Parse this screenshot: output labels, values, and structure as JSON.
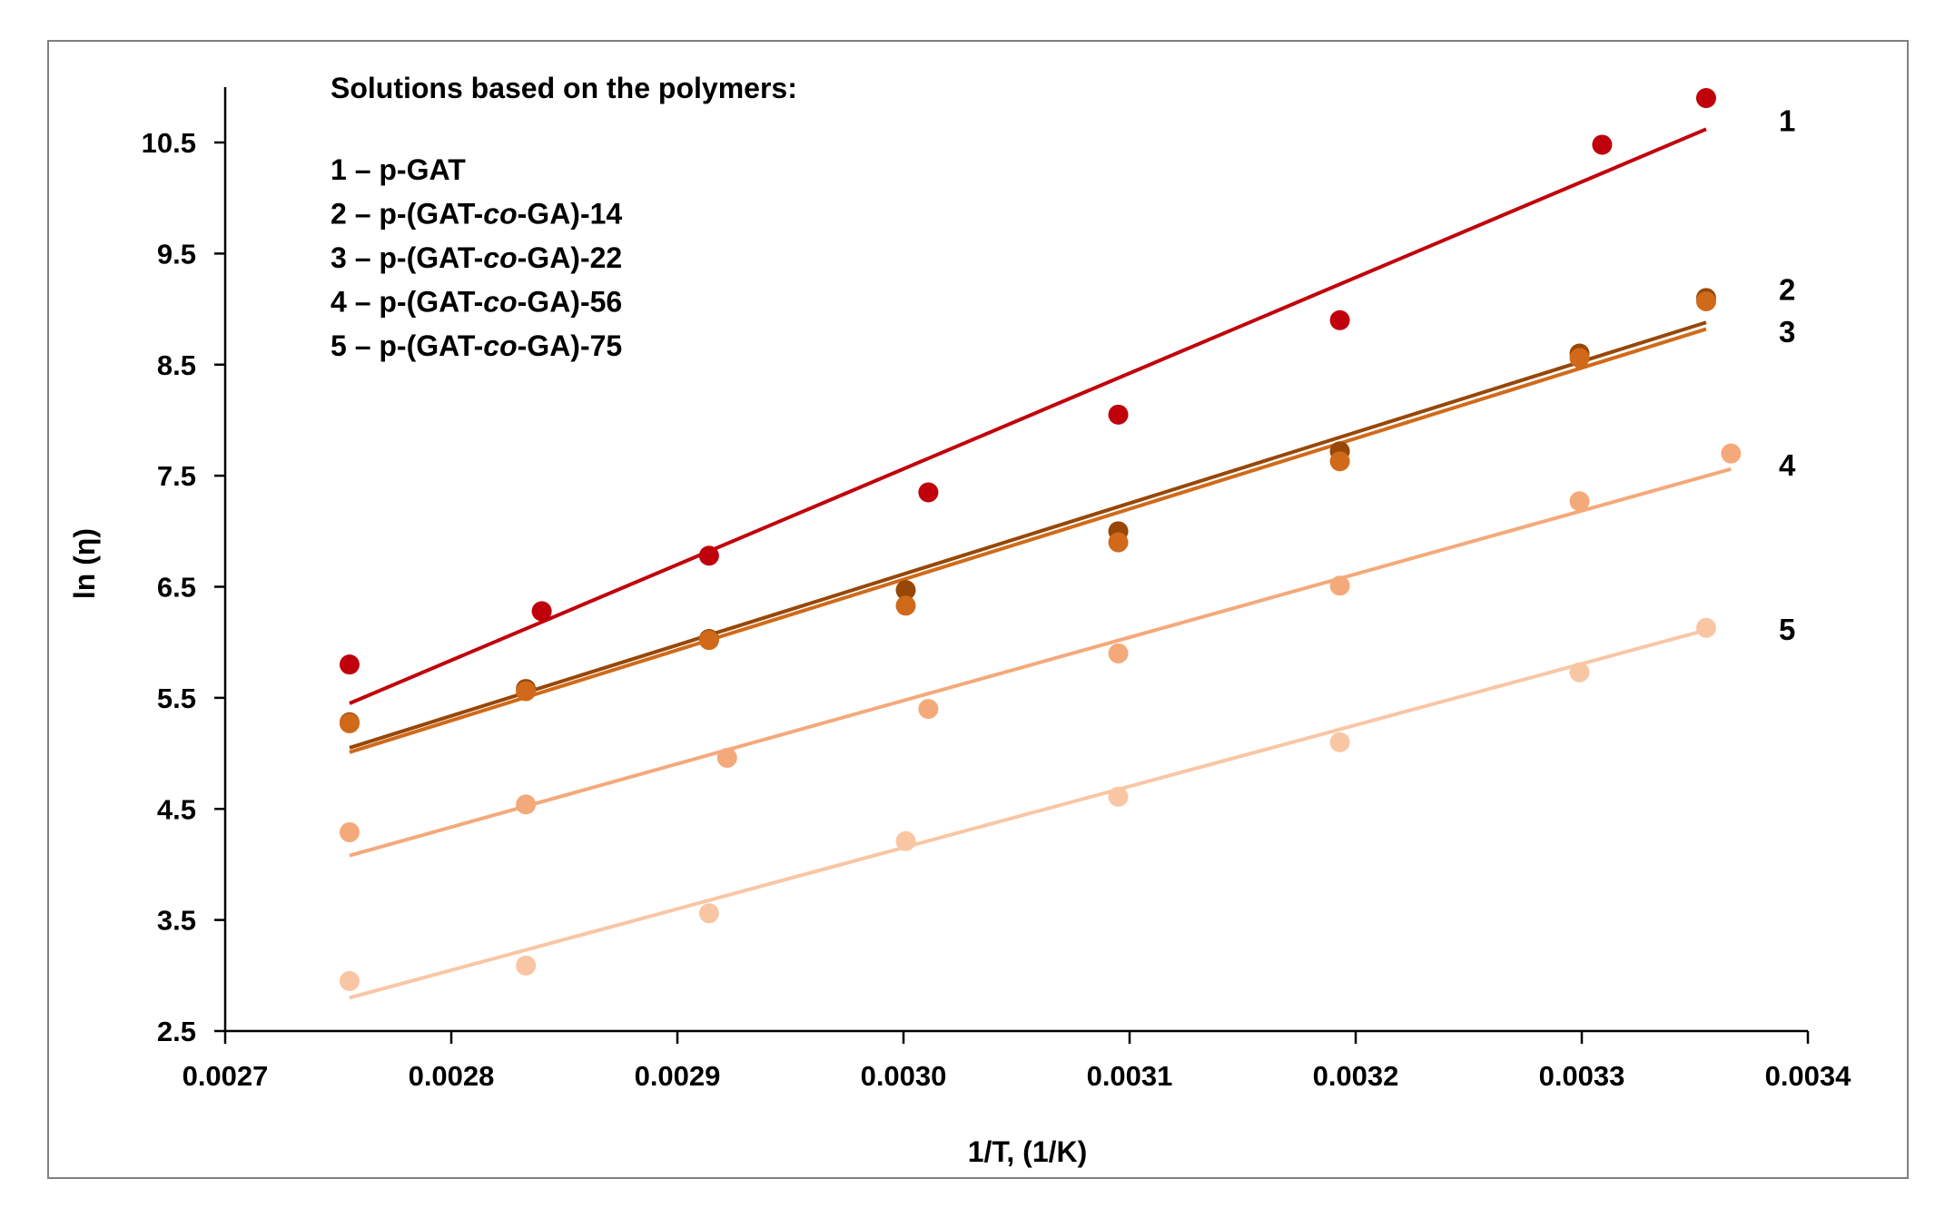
{
  "chart_data": {
    "type": "scatter",
    "title": "",
    "xlabel": "1/T, (1/K)",
    "ylabel": "ln (η)",
    "xlim": [
      0.0027,
      0.0034
    ],
    "ylim": [
      2.5,
      11.0
    ],
    "x_ticks": [
      "0.0027",
      "0.0028",
      "0.0029",
      "0.0030",
      "0.0031",
      "0.0032",
      "0.0033",
      "0.0034"
    ],
    "y_ticks": [
      "2.5",
      "3.5",
      "4.5",
      "5.5",
      "6.5",
      "7.5",
      "8.5",
      "9.5",
      "10.5"
    ],
    "legend": {
      "heading": "Solutions based on the polymers:",
      "entries": [
        {
          "prefix": "1 – p-GAT",
          "italic": "",
          "suffix": ""
        },
        {
          "prefix": "2 – p-(GAT-",
          "italic": "co",
          "suffix": "-GA)-14"
        },
        {
          "prefix": "3 – p-(GAT-",
          "italic": "co",
          "suffix": "-GA)-22"
        },
        {
          "prefix": "4 – p-(GAT-",
          "italic": "co",
          "suffix": "-GA)-56"
        },
        {
          "prefix": "5 – p-(GAT-",
          "italic": "co",
          "suffix": "-GA)-75"
        }
      ]
    },
    "series": [
      {
        "name": "1",
        "label": "1",
        "color": "#c0000b",
        "x": [
          0.002755,
          0.00284,
          0.002914,
          0.003011,
          0.003095,
          0.003193,
          0.003309,
          0.003355
        ],
        "y": [
          5.8,
          6.28,
          6.78,
          7.35,
          8.05,
          8.9,
          10.48,
          10.9
        ],
        "fit": {
          "x": [
            0.002755,
            0.003355
          ],
          "y": [
            5.45,
            10.62
          ]
        }
      },
      {
        "name": "2",
        "label": "2",
        "color": "#974706",
        "x": [
          0.002755,
          0.002833,
          0.002914,
          0.003001,
          0.003095,
          0.003193,
          0.003299,
          0.003355
        ],
        "y": [
          5.28,
          5.58,
          6.03,
          6.47,
          7.0,
          7.72,
          8.6,
          9.1
        ],
        "fit": {
          "x": [
            0.002755,
            0.003355
          ],
          "y": [
            5.05,
            8.88
          ]
        }
      },
      {
        "name": "3",
        "label": "3",
        "color": "#d06a1a",
        "x": [
          0.002755,
          0.002833,
          0.002914,
          0.003001,
          0.003095,
          0.003193,
          0.003299,
          0.003355
        ],
        "y": [
          5.27,
          5.56,
          6.02,
          6.33,
          6.9,
          7.63,
          8.56,
          9.07
        ],
        "fit": {
          "x": [
            0.002755,
            0.003355
          ],
          "y": [
            5.01,
            8.82
          ]
        }
      },
      {
        "name": "4",
        "label": "4",
        "color": "#f4a97a",
        "x": [
          0.002755,
          0.002833,
          0.002922,
          0.003011,
          0.003095,
          0.003193,
          0.003299,
          0.003366
        ],
        "y": [
          4.29,
          4.54,
          4.96,
          5.4,
          5.9,
          6.51,
          7.27,
          7.7
        ],
        "fit": {
          "x": [
            0.002755,
            0.003366
          ],
          "y": [
            4.08,
            7.56
          ]
        }
      },
      {
        "name": "5",
        "label": "5",
        "color": "#f9c6a4",
        "x": [
          0.002755,
          0.002833,
          0.002914,
          0.003001,
          0.003095,
          0.003193,
          0.003299,
          0.003355
        ],
        "y": [
          2.95,
          3.09,
          3.56,
          4.21,
          4.61,
          5.1,
          5.73,
          6.13
        ],
        "fit": {
          "x": [
            0.002755,
            0.003355
          ],
          "y": [
            2.8,
            6.11
          ]
        }
      }
    ]
  }
}
